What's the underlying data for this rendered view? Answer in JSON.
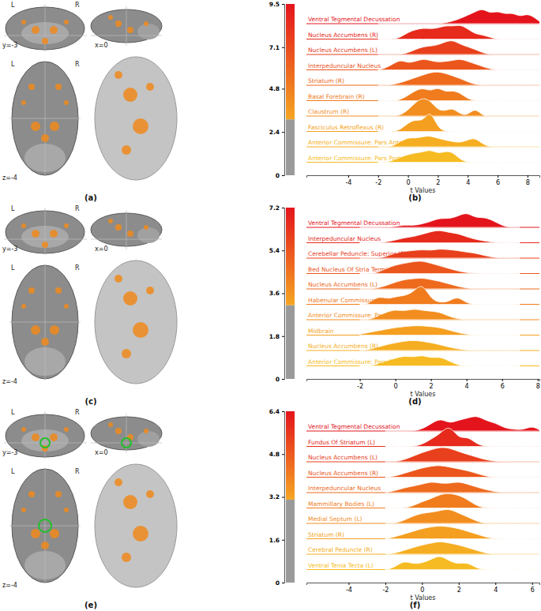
{
  "brain_panels": [
    {
      "label": "(a)",
      "coronal": {
        "left": "L",
        "right": "R",
        "coord": "y=-3"
      },
      "sagittal": {
        "coord": "x=0"
      },
      "axial": {
        "left": "L",
        "right": "R",
        "coord": "z=-4"
      }
    },
    {
      "label": "(c)",
      "coronal": {
        "left": "L",
        "right": "R",
        "coord": "y=-3"
      },
      "sagittal": {
        "coord": "x=0"
      },
      "axial": {
        "left": "L",
        "right": "R",
        "coord": "z=-4"
      }
    },
    {
      "label": "(e)",
      "coronal": {
        "left": "L",
        "right": "R",
        "coord": "y=-3"
      },
      "sagittal": {
        "coord": "x=0"
      },
      "axial": {
        "left": "L",
        "right": "R",
        "coord": "z=-4"
      }
    }
  ],
  "chart_data": [
    {
      "type": "ridgeline",
      "panel_label": "(b)",
      "x_label": "t Values",
      "xlim": [
        -6.8,
        8.8
      ],
      "xticks": [
        -4,
        -2,
        0,
        2,
        4,
        6,
        8
      ],
      "colorbar": {
        "range": [
          0,
          9.5
        ],
        "ticks": [
          0,
          2.4,
          4.8,
          7.1,
          9.5
        ],
        "threshold": 3.1,
        "colors": [
          "#9a9a9a",
          "#f5a623",
          "#e4141c"
        ]
      },
      "x": [
        -2,
        -1.5,
        -1,
        -0.5,
        0,
        0.5,
        1,
        1.5,
        2,
        2.5,
        3,
        3.5,
        4,
        4.5,
        5,
        5.5,
        6,
        6.5,
        7,
        7.5,
        8,
        8.5,
        9
      ],
      "series": [
        {
          "name": "Ventral Tegmental Decussation",
          "color": "#e4141c",
          "values": [
            0,
            0,
            0,
            0,
            0,
            0,
            0,
            0,
            0,
            0.05,
            0.15,
            0.3,
            0.5,
            0.7,
            0.9,
            0.6,
            0.75,
            0.55,
            0.65,
            0.4,
            0.6,
            0.35,
            0
          ]
        },
        {
          "name": "Nucleus Accumbens (R)",
          "color": "#e62a1c",
          "values": [
            0,
            0,
            0,
            0.1,
            0.4,
            0.55,
            0.65,
            0.6,
            0.65,
            0.8,
            0.75,
            0.85,
            0.6,
            0.3,
            0.25,
            0.1,
            0,
            0,
            0,
            0,
            0,
            0,
            0
          ]
        },
        {
          "name": "Nucleus Accumbens (L)",
          "color": "#e8401c",
          "values": [
            0,
            0,
            0,
            0,
            0.1,
            0.3,
            0.45,
            0.5,
            0.55,
            0.75,
            0.85,
            0.6,
            0.45,
            0.3,
            0.1,
            0,
            0,
            0,
            0,
            0,
            0,
            0,
            0
          ]
        },
        {
          "name": "Interpeduncular Nucleus",
          "color": "#eb561c",
          "values": [
            0,
            0.1,
            0.35,
            0.6,
            0.4,
            0.5,
            0.65,
            0.55,
            0.45,
            0.5,
            0.55,
            0.65,
            0.5,
            0.35,
            0.2,
            0.05,
            0,
            0,
            0,
            0,
            0,
            0,
            0
          ]
        },
        {
          "name": "Striatum (R)",
          "color": "#ee6a1d",
          "values": [
            0,
            0,
            0.05,
            0.15,
            0.3,
            0.45,
            0.6,
            0.75,
            0.8,
            0.7,
            0.55,
            0.4,
            0.2,
            0.05,
            0,
            0,
            0,
            0,
            0,
            0,
            0,
            0,
            0
          ]
        },
        {
          "name": "Basal Forebrain (R)",
          "color": "#f07c1e",
          "values": [
            0,
            0,
            0,
            0.05,
            0.3,
            0.6,
            0.75,
            0.55,
            0.8,
            0.5,
            0.6,
            0.45,
            0.1,
            0,
            0,
            0,
            0,
            0,
            0,
            0,
            0,
            0,
            0
          ]
        },
        {
          "name": "Claustrum (R)",
          "color": "#f28e1f",
          "values": [
            0,
            0,
            0,
            0.05,
            0.35,
            0.8,
            1.1,
            0.9,
            0.35,
            0.3,
            0.5,
            0.1,
            0.05,
            0.5,
            0,
            0,
            0,
            0,
            0,
            0,
            0,
            0,
            0
          ]
        },
        {
          "name": "Fasciculus Retroflexus (R)",
          "color": "#f49f20",
          "values": [
            0,
            0,
            0,
            0.1,
            0.5,
            0.7,
            0.6,
            1.3,
            0.2,
            0,
            0,
            0,
            0,
            0,
            0,
            0,
            0,
            0,
            0,
            0,
            0,
            0,
            0
          ]
        },
        {
          "name": "Anterior Commissure: Pars Anterior (R)",
          "color": "#f5ae21",
          "values": [
            0,
            0,
            0.05,
            0.3,
            0.55,
            0.5,
            0.6,
            0.65,
            0.5,
            0.4,
            0.3,
            0.25,
            0.4,
            0.55,
            0.15,
            0,
            0,
            0,
            0,
            0,
            0,
            0,
            0
          ]
        },
        {
          "name": "Anterior Commissure: Pars Posterior (R)",
          "color": "#f6bb22",
          "values": [
            0,
            0,
            0.1,
            0.3,
            0.45,
            0.55,
            0.6,
            0.75,
            0.5,
            0.65,
            0.6,
            0.15,
            0,
            0,
            0,
            0,
            0,
            0,
            0,
            0,
            0,
            0,
            0
          ]
        }
      ]
    },
    {
      "type": "ridgeline",
      "panel_label": "(d)",
      "x_label": "t Values",
      "xlim": [
        -5,
        8.1
      ],
      "xticks": [
        -2,
        0,
        2,
        4,
        6,
        8
      ],
      "colorbar": {
        "range": [
          0,
          7.2
        ],
        "ticks": [
          0,
          1.8,
          3.6,
          5.4,
          7.2
        ],
        "threshold": 3.1,
        "colors": [
          "#9a9a9a",
          "#f5a623",
          "#e4141c"
        ]
      },
      "x": [
        -2,
        -1.5,
        -1,
        -0.5,
        0,
        0.5,
        1,
        1.5,
        2,
        2.5,
        3,
        3.5,
        4,
        4.5,
        5,
        5.5,
        6,
        6.5,
        7
      ],
      "series": [
        {
          "name": "Ventral Tegmental Decussation",
          "color": "#e4141c",
          "values": [
            0,
            0,
            0,
            0,
            0.05,
            0.15,
            0.1,
            0.2,
            0.35,
            0.55,
            0.5,
            0.65,
            0.9,
            0.55,
            0.6,
            0.4,
            0.1,
            0,
            0
          ]
        },
        {
          "name": "Interpeduncular Nucleus",
          "color": "#e62a1c",
          "values": [
            0,
            0,
            0,
            0.05,
            0.15,
            0.3,
            0.35,
            0.5,
            0.65,
            0.75,
            0.6,
            0.55,
            0.35,
            0.2,
            0.1,
            0.03,
            0,
            0,
            0
          ]
        },
        {
          "name": "Cerebellar Peduncle: Superior (R)",
          "color": "#e8401c",
          "values": [
            0,
            0,
            0,
            0.1,
            0.3,
            0.4,
            0.45,
            0.5,
            0.45,
            0.55,
            0.5,
            0.45,
            0.35,
            0.3,
            0.15,
            0.05,
            0,
            0,
            0
          ]
        },
        {
          "name": "Bed Nucleus Of Stria Terminalis (L)",
          "color": "#eb561c",
          "values": [
            0,
            0,
            0.05,
            0.3,
            0.5,
            0.6,
            0.7,
            0.75,
            0.6,
            0.45,
            0.3,
            0.15,
            0.05,
            0.02,
            0,
            0,
            0,
            0,
            0
          ]
        },
        {
          "name": "Nucleus Accumbens (L)",
          "color": "#ee6a1d",
          "values": [
            0,
            0,
            0.05,
            0.2,
            0.4,
            0.55,
            0.6,
            0.65,
            0.55,
            0.45,
            0.3,
            0.15,
            0.05,
            0,
            0,
            0,
            0,
            0,
            0
          ]
        },
        {
          "name": "Habenular Commissure (R)",
          "color": "#f07c1e",
          "values": [
            0,
            0,
            0.5,
            0.3,
            0.45,
            0.5,
            0.7,
            1.3,
            0.3,
            0.1,
            0.15,
            0.5,
            0.05,
            0,
            0,
            0,
            0,
            0,
            0
          ]
        },
        {
          "name": "Anterior Commissure: Pars Posterior (R)",
          "color": "#f28e1f",
          "values": [
            0,
            0,
            0.2,
            0.45,
            0.6,
            0.5,
            0.65,
            0.55,
            0.5,
            0.45,
            0.2,
            0.05,
            0,
            0,
            0,
            0,
            0,
            0,
            0
          ]
        },
        {
          "name": "Midbrain",
          "color": "#f49f20",
          "values": [
            0.05,
            0.15,
            0.25,
            0.35,
            0.45,
            0.5,
            0.55,
            0.55,
            0.5,
            0.45,
            0.3,
            0.15,
            0.05,
            0,
            0,
            0,
            0,
            0,
            0
          ]
        },
        {
          "name": "Nucleus Accumbens (R)",
          "color": "#f5ae21",
          "values": [
            0,
            0.05,
            0.2,
            0.35,
            0.45,
            0.55,
            0.6,
            0.55,
            0.45,
            0.35,
            0.2,
            0.1,
            0.03,
            0,
            0,
            0,
            0,
            0,
            0
          ]
        },
        {
          "name": "Anterior Commissure: Pars Posterior (L)",
          "color": "#f6bb22",
          "values": [
            0,
            0,
            0.1,
            0.3,
            0.45,
            0.6,
            0.5,
            0.65,
            0.45,
            0.55,
            0.3,
            0.05,
            0,
            0,
            0,
            0,
            0,
            0,
            0
          ]
        }
      ]
    },
    {
      "type": "ridgeline",
      "panel_label": "(f)",
      "x_label": "t Values",
      "xlim": [
        -6.3,
        6.4
      ],
      "xticks": [
        -4,
        -2,
        0,
        2,
        4,
        6
      ],
      "colorbar": {
        "range": [
          0,
          6.4
        ],
        "ticks": [
          0,
          1.6,
          3.2,
          4.8,
          6.4
        ],
        "threshold": 3.1,
        "colors": [
          "#9a9a9a",
          "#f5a623",
          "#e4141c"
        ]
      },
      "x": [
        -2,
        -1.5,
        -1,
        -0.5,
        0,
        0.5,
        1,
        1.5,
        2,
        2.5,
        3,
        3.5,
        4,
        4.5,
        5,
        5.5,
        6,
        6.5
      ],
      "series": [
        {
          "name": "Ventral Tegmental Decussation",
          "color": "#e4141c",
          "values": [
            0,
            0,
            0,
            0,
            0.1,
            0.4,
            0.7,
            0.4,
            0.6,
            0.7,
            0.85,
            0.55,
            0.45,
            0.15,
            0.1,
            0.05,
            0.3,
            0
          ]
        },
        {
          "name": "Fundus Of Striatum (L)",
          "color": "#e62a1c",
          "values": [
            0,
            0,
            0,
            0,
            0.1,
            0.4,
            0.7,
            1.2,
            0.4,
            0.55,
            0.1,
            0,
            0,
            0,
            0,
            0,
            0,
            0
          ]
        },
        {
          "name": "Nucleus Accumbens (L)",
          "color": "#e8401c",
          "values": [
            0,
            0,
            0.1,
            0.3,
            0.5,
            0.65,
            0.8,
            0.75,
            0.55,
            0.4,
            0.25,
            0.1,
            0.03,
            0,
            0,
            0,
            0,
            0
          ]
        },
        {
          "name": "Nucleus Accumbens (R)",
          "color": "#eb561c",
          "values": [
            0,
            0.05,
            0.2,
            0.35,
            0.5,
            0.6,
            0.65,
            0.55,
            0.45,
            0.35,
            0.2,
            0.05,
            0,
            0,
            0,
            0,
            0,
            0
          ]
        },
        {
          "name": "Interpeduncular Nucleus",
          "color": "#ee6a1d",
          "values": [
            0,
            0.1,
            0.25,
            0.35,
            0.45,
            0.6,
            0.5,
            0.5,
            0.6,
            0.45,
            0.3,
            0.15,
            0.05,
            0,
            0,
            0,
            0,
            0
          ]
        },
        {
          "name": "Mammillary Bodies (L)",
          "color": "#f07c1e",
          "values": [
            0,
            0,
            0,
            0.1,
            0.35,
            0.5,
            0.75,
            0.8,
            0.7,
            0.45,
            0.1,
            0,
            0,
            0,
            0,
            0,
            0,
            0
          ]
        },
        {
          "name": "Medial Septum (L)",
          "color": "#f28e1f",
          "values": [
            0,
            0,
            0.15,
            0.4,
            0.55,
            0.6,
            0.7,
            0.8,
            0.55,
            0.35,
            0.1,
            0,
            0,
            0,
            0,
            0,
            0,
            0
          ]
        },
        {
          "name": "Striatum (R)",
          "color": "#f49f20",
          "values": [
            0,
            0.1,
            0.25,
            0.4,
            0.55,
            0.65,
            0.7,
            0.65,
            0.55,
            0.4,
            0.25,
            0.08,
            0,
            0,
            0,
            0,
            0,
            0
          ]
        },
        {
          "name": "Cerebral Peduncle (R)",
          "color": "#f5ae21",
          "values": [
            0,
            0.05,
            0.2,
            0.35,
            0.5,
            0.6,
            0.7,
            0.6,
            0.5,
            0.35,
            0.2,
            0.05,
            0,
            0,
            0,
            0,
            0,
            0
          ]
        },
        {
          "name": "Ventral Tenia Tecta (L)",
          "color": "#f6bb22",
          "values": [
            0,
            0.1,
            0.5,
            0.3,
            0.35,
            0.55,
            0.8,
            0.45,
            0.3,
            0.4,
            0.05,
            0,
            0,
            0,
            0,
            0,
            0,
            0
          ]
        }
      ]
    }
  ]
}
